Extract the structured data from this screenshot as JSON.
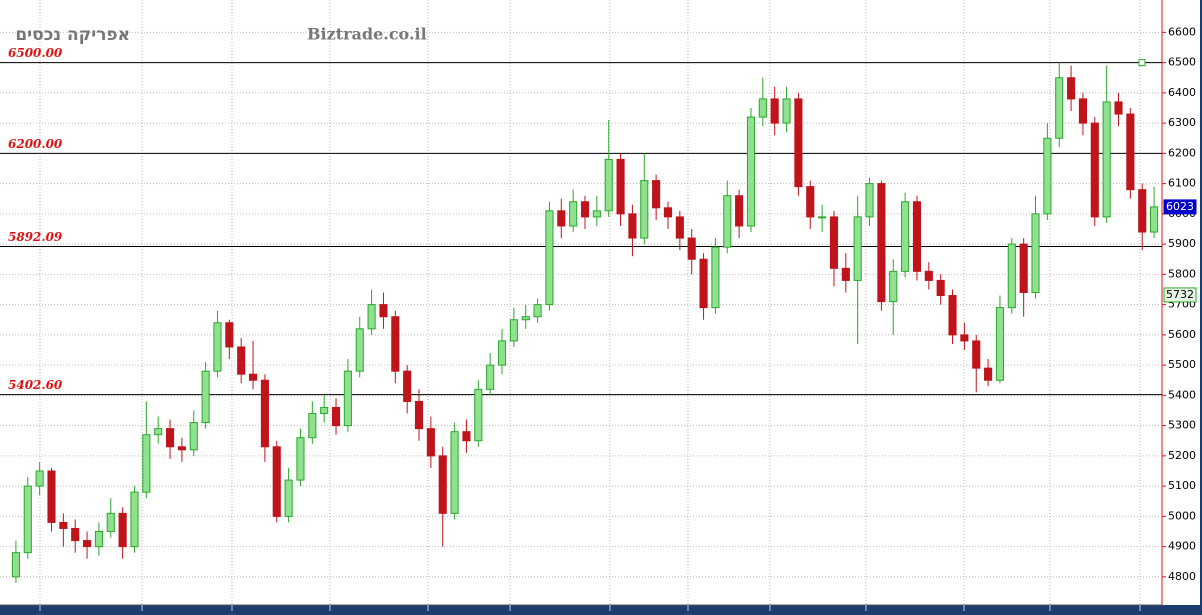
{
  "chart_data": {
    "type": "candlestick",
    "title": "אפריקה נכסים",
    "subtitle": "Biztrade.co.il",
    "ylim": [
      4707,
      6707
    ],
    "yticks": [
      4800,
      4900,
      5000,
      5100,
      5200,
      5300,
      5400,
      5500,
      5600,
      5700,
      5800,
      5900,
      6000,
      6100,
      6200,
      6300,
      6400,
      6500,
      6600
    ],
    "grid": true,
    "up_color": "#2aa82a",
    "down_color": "#c0141c",
    "levels": [
      {
        "value": 6500,
        "label": "6500.00"
      },
      {
        "value": 6200,
        "label": "6200.00"
      },
      {
        "value": 5892.09,
        "label": "5892.09"
      },
      {
        "value": 5402.6,
        "label": "5402.60"
      }
    ],
    "price_tags": [
      {
        "value": 6023,
        "color": "#0000cc"
      },
      {
        "value": 5732,
        "color": "#e6f5e6"
      }
    ],
    "open": [
      4800,
      4880,
      5100,
      5150,
      4980,
      4960,
      4920,
      4900,
      4950,
      5010,
      4900,
      5080,
      5270,
      5290,
      5230,
      5220,
      5310,
      5480,
      5640,
      5560,
      5470,
      5450,
      5230,
      5000,
      5120,
      5260,
      5340,
      5360,
      5300,
      5480,
      5620,
      5700,
      5660,
      5480,
      5380,
      5290,
      5200,
      5010,
      5280,
      5250,
      5420,
      5500,
      5580,
      5650,
      5660,
      5700,
      6010,
      5960,
      6040,
      5990,
      6010,
      6180,
      6000,
      5920,
      6110,
      6020,
      5990,
      5920,
      5850,
      5690,
      5890,
      6060,
      5960,
      6320,
      6380,
      6300,
      6380,
      6090,
      5990,
      5990,
      5820,
      5780,
      5990,
      6100,
      5710,
      5810,
      6040,
      5810,
      5780,
      5730,
      5600,
      5580,
      5490,
      5450,
      5690,
      5900,
      5740,
      6000,
      6250,
      6450,
      6380,
      6300,
      5990,
      6370,
      6330,
      6080,
      5940
    ],
    "high": [
      4920,
      5130,
      5180,
      5160,
      5010,
      4990,
      4950,
      4980,
      5060,
      5030,
      5100,
      5380,
      5330,
      5320,
      5260,
      5350,
      5510,
      5680,
      5650,
      5590,
      5580,
      5470,
      5250,
      5160,
      5290,
      5380,
      5400,
      5390,
      5520,
      5660,
      5750,
      5740,
      5680,
      5500,
      5420,
      5330,
      5230,
      5310,
      5320,
      5450,
      5540,
      5620,
      5690,
      5700,
      5720,
      6040,
      6050,
      6080,
      6060,
      6060,
      6310,
      6200,
      6030,
      6200,
      6130,
      6040,
      6010,
      5950,
      5870,
      5920,
      6110,
      6080,
      6350,
      6450,
      6420,
      6420,
      6400,
      6110,
      6030,
      6010,
      5870,
      6060,
      6120,
      6110,
      5850,
      6070,
      6060,
      5840,
      5800,
      5750,
      5640,
      5600,
      5520,
      5730,
      5920,
      5920,
      6060,
      6300,
      6500,
      6490,
      6400,
      6320,
      6490,
      6400,
      6350,
      6100,
      6090
    ],
    "low": [
      4780,
      4860,
      5070,
      4950,
      4900,
      4880,
      4860,
      4870,
      4930,
      4860,
      4880,
      5060,
      5240,
      5190,
      5180,
      5200,
      5290,
      5460,
      5520,
      5440,
      5420,
      5180,
      4980,
      4980,
      5100,
      5240,
      5310,
      5270,
      5280,
      5460,
      5600,
      5620,
      5440,
      5340,
      5250,
      5160,
      4900,
      4990,
      5210,
      5230,
      5400,
      5470,
      5560,
      5620,
      5640,
      5680,
      5920,
      5940,
      5950,
      5960,
      5990,
      5960,
      5860,
      5900,
      5980,
      5950,
      5880,
      5800,
      5650,
      5670,
      5870,
      5920,
      5940,
      6290,
      6260,
      6270,
      6060,
      5950,
      5940,
      5760,
      5740,
      5570,
      5960,
      5680,
      5600,
      5790,
      5780,
      5750,
      5700,
      5570,
      5550,
      5410,
      5430,
      5440,
      5670,
      5660,
      5720,
      5980,
      6220,
      6340,
      6260,
      5960,
      5970,
      6290,
      6050,
      5880,
      5920
    ],
    "close": [
      4880,
      5100,
      5150,
      4980,
      4960,
      4920,
      4900,
      4950,
      5010,
      4900,
      5080,
      5270,
      5290,
      5230,
      5220,
      5310,
      5480,
      5640,
      5560,
      5470,
      5450,
      5230,
      5000,
      5120,
      5260,
      5340,
      5360,
      5300,
      5480,
      5620,
      5700,
      5660,
      5480,
      5380,
      5290,
      5200,
      5010,
      5280,
      5250,
      5420,
      5500,
      5580,
      5650,
      5660,
      5700,
      6010,
      5960,
      6040,
      5990,
      6010,
      6180,
      6000,
      5920,
      6110,
      6020,
      5990,
      5920,
      5850,
      5690,
      5890,
      6060,
      5960,
      6320,
      6380,
      6300,
      6380,
      6090,
      5990,
      5990,
      5820,
      5780,
      5990,
      6100,
      5710,
      5810,
      6040,
      5810,
      5780,
      5730,
      5600,
      5580,
      5490,
      5450,
      5690,
      5900,
      5740,
      6000,
      6250,
      6450,
      6380,
      6300,
      5990,
      6370,
      6330,
      6080,
      5940,
      6023
    ]
  }
}
